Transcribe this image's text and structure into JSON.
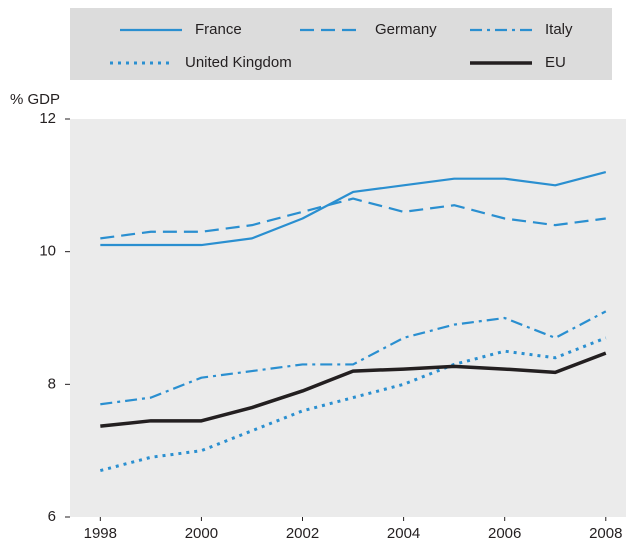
{
  "chart_data": {
    "type": "line",
    "y_label": "% GDP",
    "x": [
      1998,
      1999,
      2000,
      2001,
      2002,
      2003,
      2004,
      2005,
      2006,
      2007,
      2008
    ],
    "series": [
      {
        "name": "France",
        "color": "#2a8fd0",
        "style": "solid",
        "values": [
          10.1,
          10.1,
          10.1,
          10.2,
          10.5,
          10.9,
          11.0,
          11.1,
          11.1,
          11.0,
          11.2
        ]
      },
      {
        "name": "Germany",
        "color": "#2a8fd0",
        "style": "dashed",
        "values": [
          10.2,
          10.3,
          10.3,
          10.4,
          10.6,
          10.8,
          10.6,
          10.7,
          10.5,
          10.4,
          10.5
        ]
      },
      {
        "name": "Italy",
        "color": "#2a8fd0",
        "style": "dashdot",
        "values": [
          7.7,
          7.8,
          8.1,
          8.2,
          8.3,
          8.3,
          8.7,
          8.9,
          9.0,
          8.7,
          9.1
        ]
      },
      {
        "name": "United Kingdom",
        "color": "#2a8fd0",
        "style": "dotted",
        "values": [
          6.7,
          6.9,
          7.0,
          7.3,
          7.6,
          7.8,
          8.0,
          8.3,
          8.5,
          8.4,
          8.7
        ]
      },
      {
        "name": "EU",
        "color": "#231f20",
        "style": "thick",
        "values": [
          7.37,
          7.45,
          7.45,
          7.65,
          7.9,
          8.2,
          8.23,
          8.27,
          8.23,
          8.18,
          8.47
        ]
      }
    ],
    "xlim": [
      1997.4,
      2008.4
    ],
    "xticks": [
      1998,
      2000,
      2002,
      2004,
      2006,
      2008
    ],
    "ylim": [
      6,
      12
    ],
    "yticks": [
      6,
      8,
      10,
      12
    ],
    "grid": false
  }
}
